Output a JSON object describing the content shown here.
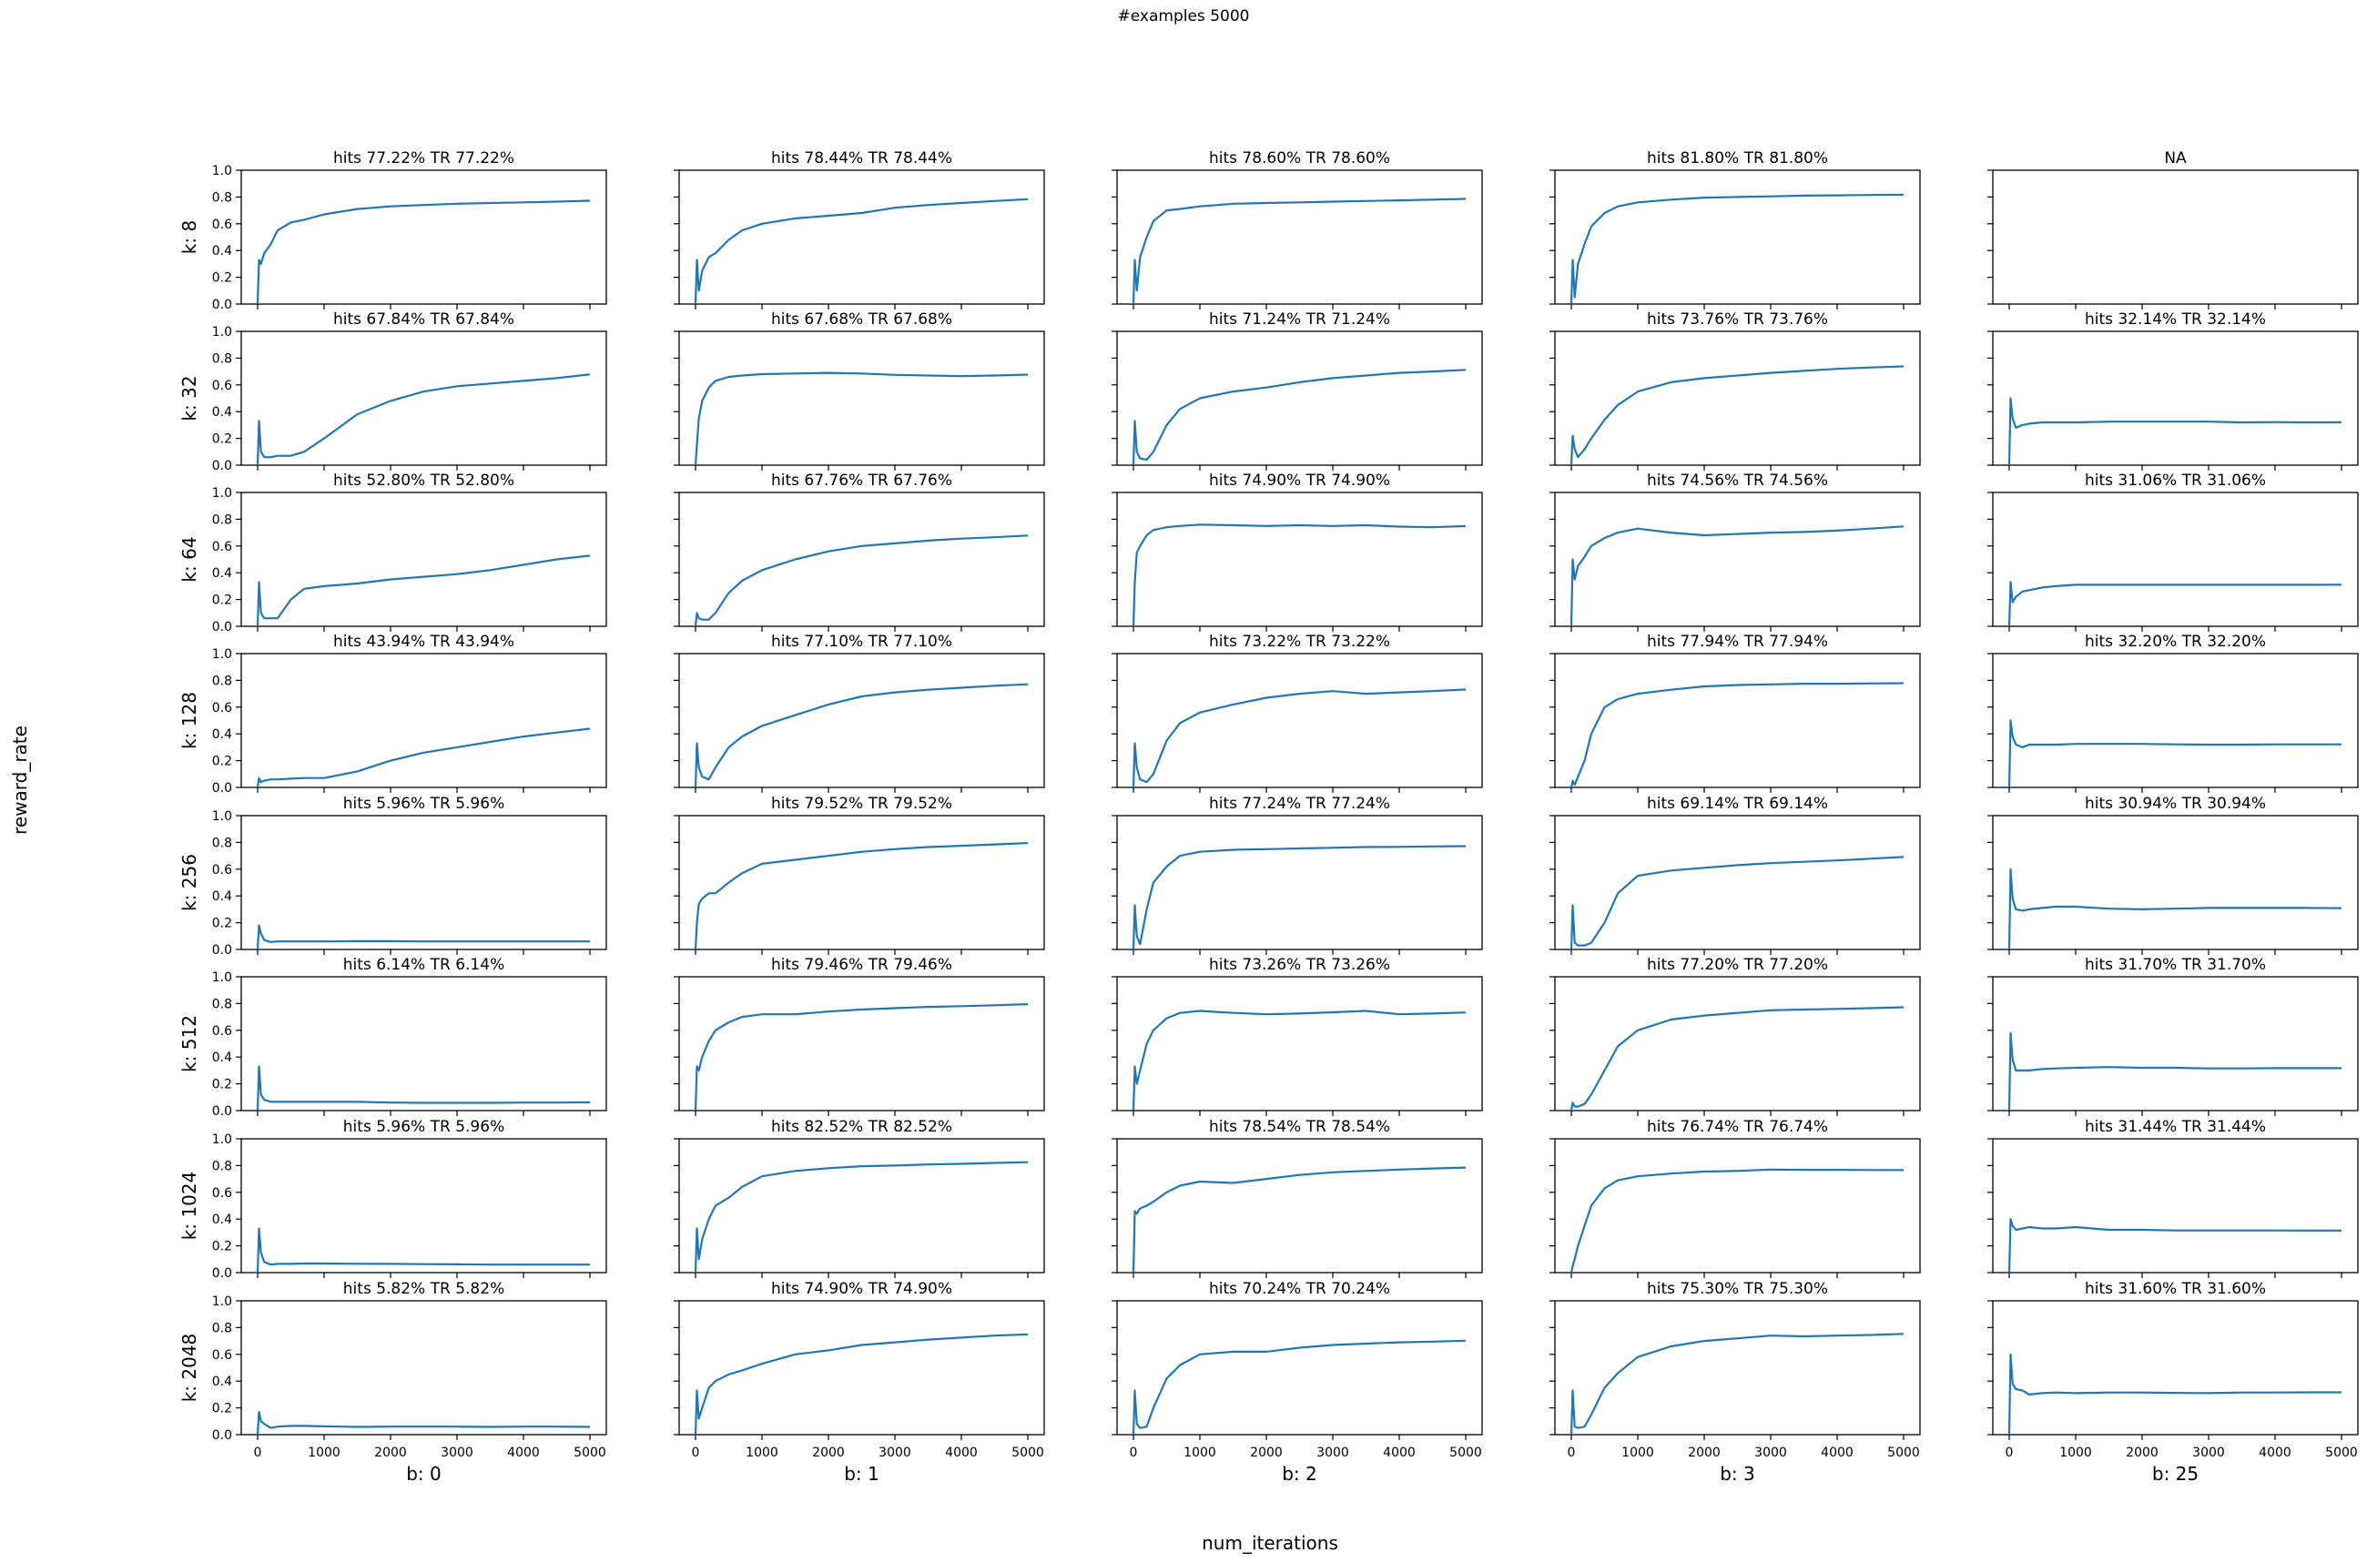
{
  "figure": {
    "suptitle": "#examples 5000",
    "supxlabel": "num_iterations",
    "supylabel": "reward_rate",
    "line_color": "#1f77b4"
  },
  "layout": {
    "col_left": [
      265,
      746,
      1227,
      1708,
      2189
    ],
    "row_top": [
      187,
      364,
      541,
      718,
      896,
      1073,
      1251,
      1429
    ],
    "axes_w": 401,
    "axes_h": 147,
    "x_pad": 18,
    "x_span": 365
  },
  "rows": [
    "k: 8",
    "k: 32",
    "k: 64",
    "k: 128",
    "k: 256",
    "k: 512",
    "k: 1024",
    "k: 2048"
  ],
  "cols": [
    "b: 0",
    "b: 1",
    "b: 2",
    "b: 3",
    "b: 25"
  ],
  "yticks": [
    "0.0",
    "0.2",
    "0.4",
    "0.6",
    "0.8",
    "1.0"
  ],
  "xticks": [
    "0",
    "1000",
    "2000",
    "3000",
    "4000",
    "5000"
  ],
  "chart_data": {
    "type": "line",
    "title": "#examples 5000",
    "xlabel": "num_iterations",
    "ylabel": "reward_rate",
    "xlim": [
      -250,
      5250
    ],
    "ylim": [
      0,
      1
    ],
    "grid": false,
    "legend": "none",
    "row_labels": [
      "k: 8",
      "k: 32",
      "k: 64",
      "k: 128",
      "k: 256",
      "k: 512",
      "k: 1024",
      "k: 2048"
    ],
    "col_labels": [
      "b: 0",
      "b: 1",
      "b: 2",
      "b: 3",
      "b: 25"
    ],
    "x": [
      0,
      20,
      50,
      100,
      200,
      300,
      500,
      700,
      1000,
      1500,
      2000,
      2500,
      3000,
      3500,
      4000,
      4500,
      5000
    ],
    "panels": [
      [
        {
          "title": "hits 77.22% TR 77.22%",
          "values": [
            0.0,
            0.33,
            0.3,
            0.38,
            0.45,
            0.55,
            0.61,
            0.63,
            0.67,
            0.71,
            0.73,
            0.74,
            0.75,
            0.755,
            0.76,
            0.765,
            0.772
          ]
        },
        {
          "title": "hits 78.44% TR 78.44%",
          "values": [
            0.0,
            0.33,
            0.1,
            0.25,
            0.35,
            0.38,
            0.48,
            0.55,
            0.6,
            0.64,
            0.66,
            0.68,
            0.72,
            0.74,
            0.755,
            0.77,
            0.784
          ]
        },
        {
          "title": "hits 78.60% TR 78.60%",
          "values": [
            0.0,
            0.33,
            0.1,
            0.35,
            0.5,
            0.62,
            0.7,
            0.71,
            0.73,
            0.75,
            0.755,
            0.76,
            0.765,
            0.77,
            0.775,
            0.78,
            0.786
          ]
        },
        {
          "title": "hits 81.80% TR 81.80%",
          "values": [
            0.0,
            0.33,
            0.05,
            0.3,
            0.45,
            0.58,
            0.68,
            0.73,
            0.76,
            0.78,
            0.795,
            0.8,
            0.805,
            0.81,
            0.812,
            0.815,
            0.818
          ]
        },
        {
          "title": "NA",
          "values": []
        }
      ],
      [
        {
          "title": "hits 67.84% TR 67.84%",
          "values": [
            0.0,
            0.33,
            0.1,
            0.06,
            0.06,
            0.07,
            0.07,
            0.1,
            0.2,
            0.38,
            0.48,
            0.55,
            0.59,
            0.61,
            0.63,
            0.65,
            0.678
          ]
        },
        {
          "title": "hits 67.68% TR 67.68%",
          "values": [
            0.0,
            0.15,
            0.35,
            0.48,
            0.58,
            0.63,
            0.66,
            0.67,
            0.68,
            0.685,
            0.69,
            0.685,
            0.675,
            0.67,
            0.665,
            0.67,
            0.677
          ]
        },
        {
          "title": "hits 71.24% TR 71.24%",
          "values": [
            0.0,
            0.33,
            0.1,
            0.05,
            0.04,
            0.1,
            0.3,
            0.42,
            0.5,
            0.55,
            0.58,
            0.62,
            0.65,
            0.67,
            0.69,
            0.7,
            0.712
          ]
        },
        {
          "title": "hits 73.76% TR 73.76%",
          "values": [
            0.0,
            0.22,
            0.12,
            0.06,
            0.12,
            0.2,
            0.34,
            0.45,
            0.55,
            0.62,
            0.65,
            0.67,
            0.69,
            0.705,
            0.72,
            0.73,
            0.738
          ]
        },
        {
          "title": "hits 32.14% TR 32.14%",
          "values": [
            0.0,
            0.5,
            0.35,
            0.28,
            0.3,
            0.31,
            0.32,
            0.32,
            0.32,
            0.325,
            0.325,
            0.325,
            0.325,
            0.32,
            0.322,
            0.32,
            0.321
          ]
        }
      ],
      [
        {
          "title": "hits 52.80% TR 52.80%",
          "values": [
            0.0,
            0.33,
            0.1,
            0.06,
            0.06,
            0.06,
            0.2,
            0.28,
            0.3,
            0.32,
            0.35,
            0.37,
            0.39,
            0.42,
            0.46,
            0.5,
            0.528
          ]
        },
        {
          "title": "hits 67.76% TR 67.76%",
          "values": [
            0.0,
            0.1,
            0.06,
            0.05,
            0.05,
            0.1,
            0.25,
            0.34,
            0.42,
            0.5,
            0.56,
            0.6,
            0.62,
            0.64,
            0.655,
            0.665,
            0.678
          ]
        },
        {
          "title": "hits 74.90% TR 74.90%",
          "values": [
            0.0,
            0.33,
            0.55,
            0.6,
            0.68,
            0.72,
            0.74,
            0.75,
            0.76,
            0.755,
            0.75,
            0.755,
            0.75,
            0.755,
            0.745,
            0.74,
            0.749
          ]
        },
        {
          "title": "hits 74.56% TR 74.56%",
          "values": [
            0.0,
            0.5,
            0.35,
            0.45,
            0.52,
            0.6,
            0.66,
            0.7,
            0.73,
            0.7,
            0.68,
            0.69,
            0.7,
            0.705,
            0.715,
            0.73,
            0.746
          ]
        },
        {
          "title": "hits 31.06% TR 31.06%",
          "values": [
            0.0,
            0.33,
            0.18,
            0.22,
            0.26,
            0.27,
            0.29,
            0.3,
            0.31,
            0.31,
            0.31,
            0.31,
            0.31,
            0.31,
            0.31,
            0.31,
            0.311
          ]
        }
      ],
      [
        {
          "title": "hits 43.94% TR 43.94%",
          "values": [
            0.0,
            0.07,
            0.04,
            0.05,
            0.06,
            0.06,
            0.065,
            0.07,
            0.07,
            0.12,
            0.2,
            0.26,
            0.3,
            0.34,
            0.38,
            0.41,
            0.439
          ]
        },
        {
          "title": "hits 77.10% TR 77.10%",
          "values": [
            0.0,
            0.33,
            0.15,
            0.08,
            0.06,
            0.15,
            0.3,
            0.38,
            0.46,
            0.54,
            0.62,
            0.68,
            0.71,
            0.73,
            0.745,
            0.76,
            0.771
          ]
        },
        {
          "title": "hits 73.22% TR 73.22%",
          "values": [
            0.0,
            0.33,
            0.15,
            0.06,
            0.04,
            0.1,
            0.35,
            0.48,
            0.56,
            0.62,
            0.67,
            0.7,
            0.72,
            0.7,
            0.71,
            0.72,
            0.732
          ]
        },
        {
          "title": "hits 77.94% TR 77.94%",
          "values": [
            0.0,
            0.05,
            0.02,
            0.08,
            0.2,
            0.4,
            0.6,
            0.66,
            0.7,
            0.73,
            0.755,
            0.765,
            0.77,
            0.775,
            0.775,
            0.777,
            0.779
          ]
        },
        {
          "title": "hits 32.20% TR 32.20%",
          "values": [
            0.0,
            0.5,
            0.38,
            0.32,
            0.3,
            0.32,
            0.32,
            0.32,
            0.325,
            0.325,
            0.325,
            0.322,
            0.32,
            0.32,
            0.322,
            0.322,
            0.322
          ]
        }
      ],
      [
        {
          "title": "hits 5.96% TR 5.96%",
          "values": [
            0.0,
            0.18,
            0.12,
            0.07,
            0.055,
            0.06,
            0.06,
            0.06,
            0.06,
            0.062,
            0.062,
            0.06,
            0.06,
            0.06,
            0.06,
            0.06,
            0.06
          ]
        },
        {
          "title": "hits 79.52% TR 79.52%",
          "values": [
            0.0,
            0.2,
            0.34,
            0.38,
            0.42,
            0.42,
            0.5,
            0.57,
            0.64,
            0.67,
            0.7,
            0.73,
            0.75,
            0.765,
            0.775,
            0.785,
            0.795
          ]
        },
        {
          "title": "hits 77.24% TR 77.24%",
          "values": [
            0.0,
            0.33,
            0.1,
            0.04,
            0.3,
            0.5,
            0.62,
            0.7,
            0.73,
            0.745,
            0.75,
            0.755,
            0.76,
            0.765,
            0.767,
            0.77,
            0.772
          ]
        },
        {
          "title": "hits 69.14% TR 69.14%",
          "values": [
            0.0,
            0.33,
            0.05,
            0.03,
            0.03,
            0.05,
            0.2,
            0.42,
            0.55,
            0.59,
            0.61,
            0.63,
            0.645,
            0.655,
            0.665,
            0.678,
            0.691
          ]
        },
        {
          "title": "hits 30.94% TR 30.94%",
          "values": [
            0.0,
            0.6,
            0.38,
            0.3,
            0.29,
            0.3,
            0.31,
            0.32,
            0.32,
            0.305,
            0.3,
            0.305,
            0.31,
            0.31,
            0.31,
            0.31,
            0.309
          ]
        }
      ],
      [
        {
          "title": "hits 6.14% TR 6.14%",
          "values": [
            0.0,
            0.33,
            0.12,
            0.08,
            0.065,
            0.065,
            0.065,
            0.065,
            0.065,
            0.065,
            0.06,
            0.058,
            0.058,
            0.058,
            0.06,
            0.06,
            0.061
          ]
        },
        {
          "title": "hits 79.46% TR 79.46%",
          "values": [
            0.0,
            0.33,
            0.3,
            0.4,
            0.52,
            0.6,
            0.66,
            0.7,
            0.72,
            0.72,
            0.74,
            0.755,
            0.765,
            0.775,
            0.78,
            0.787,
            0.795
          ]
        },
        {
          "title": "hits 73.26% TR 73.26%",
          "values": [
            0.0,
            0.33,
            0.2,
            0.3,
            0.5,
            0.6,
            0.69,
            0.73,
            0.745,
            0.73,
            0.72,
            0.725,
            0.735,
            0.745,
            0.72,
            0.725,
            0.733
          ]
        },
        {
          "title": "hits 77.20% TR 77.20%",
          "values": [
            0.0,
            0.06,
            0.03,
            0.03,
            0.05,
            0.12,
            0.3,
            0.48,
            0.6,
            0.68,
            0.71,
            0.73,
            0.75,
            0.755,
            0.76,
            0.765,
            0.772
          ]
        },
        {
          "title": "hits 31.70% TR 31.70%",
          "values": [
            0.0,
            0.58,
            0.38,
            0.3,
            0.3,
            0.3,
            0.31,
            0.315,
            0.32,
            0.325,
            0.32,
            0.32,
            0.315,
            0.315,
            0.317,
            0.317,
            0.317
          ]
        }
      ],
      [
        {
          "title": "hits 5.96% TR 5.96%",
          "values": [
            0.0,
            0.33,
            0.15,
            0.08,
            0.06,
            0.065,
            0.065,
            0.068,
            0.068,
            0.066,
            0.065,
            0.063,
            0.062,
            0.06,
            0.06,
            0.06,
            0.06
          ]
        },
        {
          "title": "hits 82.52% TR 82.52%",
          "values": [
            0.0,
            0.33,
            0.1,
            0.25,
            0.4,
            0.5,
            0.56,
            0.64,
            0.72,
            0.76,
            0.78,
            0.795,
            0.8,
            0.808,
            0.813,
            0.82,
            0.825
          ]
        },
        {
          "title": "hits 78.54% TR 78.54%",
          "values": [
            0.0,
            0.46,
            0.44,
            0.48,
            0.5,
            0.53,
            0.6,
            0.65,
            0.68,
            0.67,
            0.7,
            0.73,
            0.75,
            0.76,
            0.77,
            0.778,
            0.785
          ]
        },
        {
          "title": "hits 76.74% TR 76.74%",
          "values": [
            0.0,
            0.05,
            0.1,
            0.2,
            0.35,
            0.5,
            0.63,
            0.69,
            0.72,
            0.74,
            0.755,
            0.76,
            0.77,
            0.768,
            0.768,
            0.767,
            0.767
          ]
        },
        {
          "title": "hits 31.44% TR 31.44%",
          "values": [
            0.0,
            0.4,
            0.35,
            0.32,
            0.33,
            0.34,
            0.33,
            0.33,
            0.34,
            0.32,
            0.32,
            0.315,
            0.315,
            0.315,
            0.315,
            0.314,
            0.314
          ]
        }
      ],
      [
        {
          "title": "hits 5.82% TR 5.82%",
          "values": [
            0.0,
            0.17,
            0.1,
            0.08,
            0.05,
            0.06,
            0.065,
            0.065,
            0.062,
            0.058,
            0.06,
            0.06,
            0.06,
            0.058,
            0.06,
            0.06,
            0.058
          ]
        },
        {
          "title": "hits 74.90% TR 74.90%",
          "values": [
            0.0,
            0.33,
            0.12,
            0.2,
            0.35,
            0.4,
            0.45,
            0.48,
            0.53,
            0.6,
            0.63,
            0.67,
            0.69,
            0.71,
            0.725,
            0.74,
            0.749
          ]
        },
        {
          "title": "hits 70.24% TR 70.24%",
          "values": [
            0.0,
            0.33,
            0.08,
            0.05,
            0.06,
            0.2,
            0.42,
            0.52,
            0.6,
            0.62,
            0.62,
            0.65,
            0.67,
            0.68,
            0.69,
            0.695,
            0.702
          ]
        },
        {
          "title": "hits 75.30% TR 75.30%",
          "values": [
            0.0,
            0.33,
            0.06,
            0.05,
            0.06,
            0.15,
            0.35,
            0.46,
            0.58,
            0.66,
            0.7,
            0.72,
            0.74,
            0.735,
            0.74,
            0.745,
            0.753
          ]
        },
        {
          "title": "hits 31.60% TR 31.60%",
          "values": [
            0.0,
            0.6,
            0.38,
            0.34,
            0.33,
            0.3,
            0.31,
            0.315,
            0.31,
            0.315,
            0.315,
            0.312,
            0.31,
            0.315,
            0.315,
            0.316,
            0.316
          ]
        }
      ]
    ]
  }
}
